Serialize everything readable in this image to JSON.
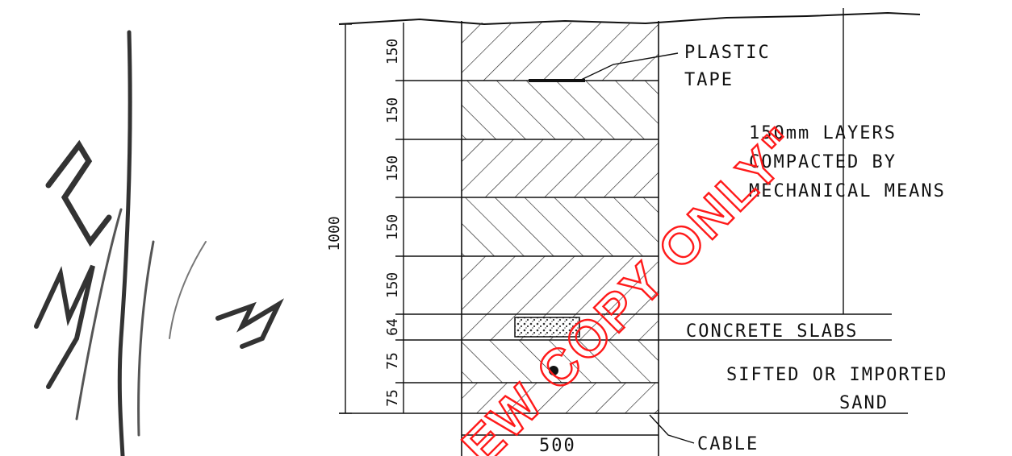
{
  "labels": {
    "plastic_tape_1": "PLASTIC",
    "plastic_tape_2": "TAPE",
    "layers_1": "150mm  LAYERS",
    "layers_2": "COMPACTED  BY",
    "layers_3": "MECHANICAL  MEANS",
    "slabs": "CONCRETE  SLABS",
    "sand_1": "SIFTED  OR  IMPORTED",
    "sand_2": "SAND",
    "cable": "CABLE",
    "width": "500",
    "total_depth": "1000"
  },
  "layer_dims": [
    "150",
    "150",
    "150",
    "150",
    "150",
    "64",
    "75",
    "75"
  ],
  "watermark": "EW COPY ONLY\"",
  "signature": "NB",
  "colors": {
    "ink": "#111111",
    "watermark": "#ff1a1a"
  }
}
